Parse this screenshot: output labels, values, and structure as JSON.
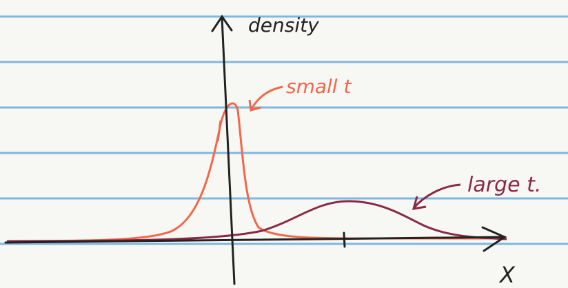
{
  "axis": {
    "y_label": "density",
    "x_label": "X"
  },
  "annotations": [
    {
      "label": "small t"
    },
    {
      "label": "large t."
    }
  ]
}
